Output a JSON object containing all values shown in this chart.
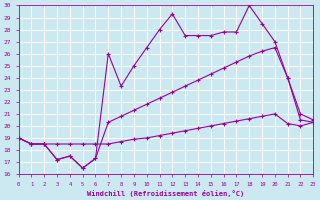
{
  "xlabel": "Windchill (Refroidissement éolien,°C)",
  "bg_color": "#cce8f0",
  "grid_color": "#aacccc",
  "line_color": "#990099",
  "xmin": 0,
  "xmax": 23,
  "ymin": 16,
  "ymax": 30,
  "line1_x": [
    0,
    1,
    2,
    3,
    4,
    5,
    6,
    7,
    8,
    9,
    10,
    11,
    12,
    13,
    14,
    15,
    16,
    17,
    18,
    19,
    20,
    21,
    22,
    23
  ],
  "line1_y": [
    19,
    18.5,
    18.5,
    18.5,
    18.5,
    18.5,
    18.5,
    18.5,
    18.7,
    18.9,
    19.0,
    19.2,
    19.4,
    19.6,
    19.8,
    20.0,
    20.2,
    20.4,
    20.6,
    20.8,
    21.0,
    20.2,
    20.0,
    20.3
  ],
  "line2_x": [
    0,
    1,
    2,
    3,
    4,
    5,
    6,
    7,
    8,
    9,
    10,
    11,
    12,
    13,
    14,
    15,
    16,
    17,
    18,
    19,
    20,
    21,
    22,
    23
  ],
  "line2_y": [
    19,
    18.5,
    18.5,
    17.2,
    17.5,
    16.5,
    17.3,
    26.0,
    23.3,
    25.0,
    26.5,
    28.0,
    29.3,
    27.5,
    27.5,
    27.5,
    27.8,
    27.8,
    30.0,
    28.5,
    27.0,
    24.0,
    21.0,
    20.5
  ],
  "line3_x": [
    0,
    1,
    2,
    3,
    4,
    5,
    6,
    7,
    8,
    9,
    10,
    11,
    12,
    13,
    14,
    15,
    16,
    17,
    18,
    19,
    20,
    21,
    22,
    23
  ],
  "line3_y": [
    19,
    18.5,
    18.5,
    17.2,
    17.5,
    16.5,
    17.3,
    20.3,
    20.8,
    21.3,
    21.8,
    22.3,
    22.8,
    23.3,
    23.8,
    24.3,
    24.8,
    25.3,
    25.8,
    26.2,
    26.5,
    24.0,
    20.5,
    20.3
  ],
  "yticks": [
    16,
    17,
    18,
    19,
    20,
    21,
    22,
    23,
    24,
    25,
    26,
    27,
    28,
    29,
    30
  ],
  "xticks": [
    0,
    1,
    2,
    3,
    4,
    5,
    6,
    7,
    8,
    9,
    10,
    11,
    12,
    13,
    14,
    15,
    16,
    17,
    18,
    19,
    20,
    21,
    22,
    23
  ]
}
